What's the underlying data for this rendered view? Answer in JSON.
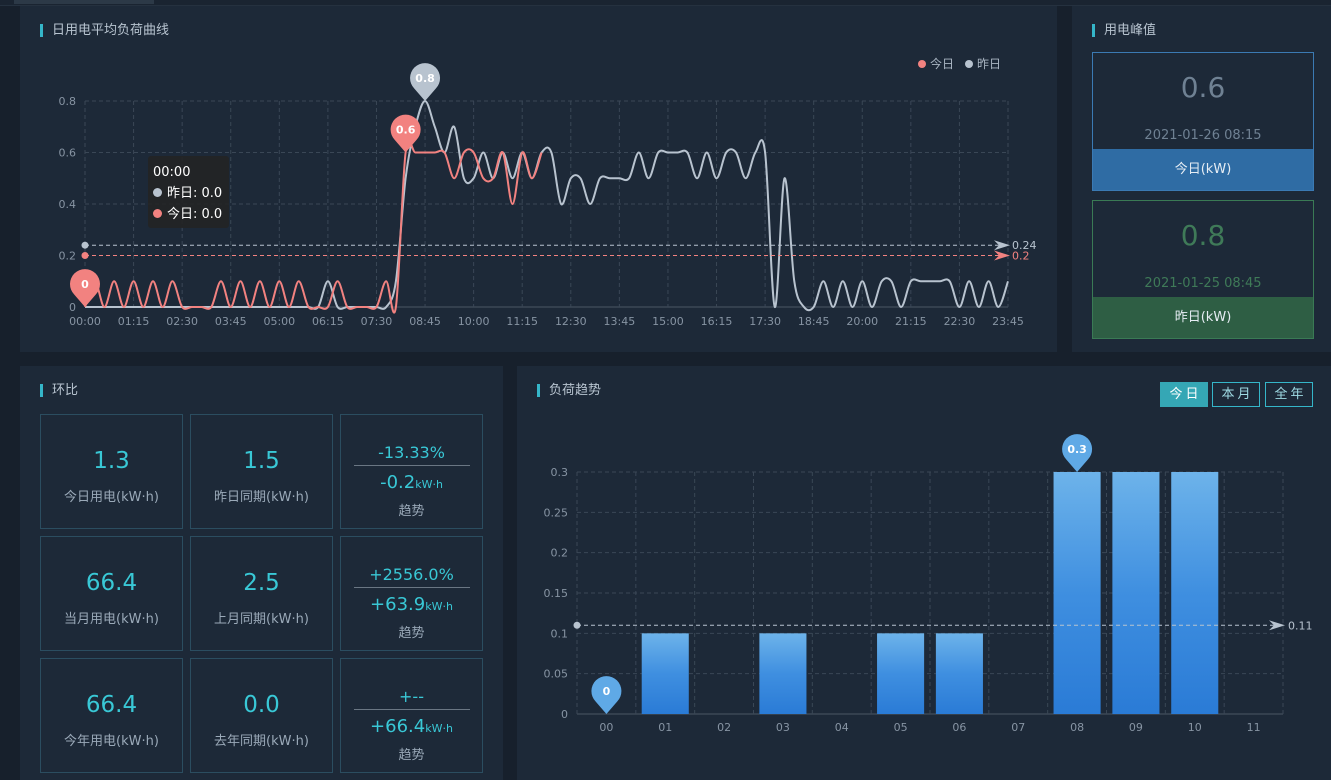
{
  "load_curve": {
    "title": "日用电平均负荷曲线",
    "legend": [
      {
        "name": "今日",
        "color": "#f28280"
      },
      {
        "name": "昨日",
        "color": "#b8c3cf"
      }
    ],
    "tooltip": {
      "time": "00:00",
      "rows": [
        {
          "name": "昨日",
          "value": "0.0"
        },
        {
          "name": "今日",
          "value": "0.0"
        }
      ]
    }
  },
  "peak": {
    "title": "用电峰值",
    "today": {
      "value": "0.6",
      "time": "2021-01-26 08:15",
      "label": "今日(kW)"
    },
    "yesterday": {
      "value": "0.8",
      "time": "2021-01-25 08:45",
      "label": "昨日(kW)"
    }
  },
  "ratio": {
    "title": "环比",
    "tiles": [
      {
        "value": "1.3",
        "label": "今日用电(kW·h)"
      },
      {
        "value": "1.5",
        "label": "昨日同期(kW·h)"
      },
      {
        "pct": "-13.33%",
        "diff": "-0.2",
        "unit": "kW·h",
        "trend": "趋势"
      },
      {
        "value": "66.4",
        "label": "当月用电(kW·h)"
      },
      {
        "value": "2.5",
        "label": "上月同期(kW·h)"
      },
      {
        "pct": "+2556.0%",
        "diff": "+63.9",
        "unit": "kW·h",
        "trend": "趋势"
      },
      {
        "value": "66.4",
        "label": "今年用电(kW·h)"
      },
      {
        "value": "0.0",
        "label": "去年同期(kW·h)"
      },
      {
        "pct": "+--",
        "diff": "+66.4",
        "unit": "kW·h",
        "trend": "趋势"
      }
    ]
  },
  "trend": {
    "title": "负荷趋势",
    "buttons": [
      {
        "label": "今日",
        "active": true
      },
      {
        "label": "本月",
        "active": false
      },
      {
        "label": "全年",
        "active": false
      }
    ]
  },
  "chart_data": [
    {
      "type": "line",
      "title": "日用电平均负荷曲线",
      "x_ticks": [
        "00:00",
        "01:15",
        "02:30",
        "03:45",
        "05:00",
        "06:15",
        "07:30",
        "08:45",
        "10:00",
        "11:15",
        "12:30",
        "13:45",
        "15:00",
        "16:15",
        "17:30",
        "18:45",
        "20:00",
        "21:15",
        "22:30",
        "23:45"
      ],
      "ylim": [
        0,
        0.8
      ],
      "y_ticks": [
        0,
        0.2,
        0.4,
        0.6,
        0.8
      ],
      "grid": true,
      "legend_position": "top-right",
      "series": [
        {
          "name": "今日",
          "color": "#f28280",
          "x": [
            "00:00",
            "00:15",
            "00:30",
            "00:45",
            "01:00",
            "01:15",
            "01:30",
            "01:45",
            "02:00",
            "02:15",
            "02:30",
            "02:45",
            "03:00",
            "03:15",
            "03:30",
            "03:45",
            "04:00",
            "04:15",
            "04:30",
            "04:45",
            "05:00",
            "05:15",
            "05:30",
            "05:45",
            "06:00",
            "06:15",
            "06:30",
            "06:45",
            "07:00",
            "07:15",
            "07:30",
            "07:45",
            "08:00",
            "08:15",
            "08:30",
            "08:45",
            "09:00",
            "09:15",
            "09:30",
            "09:45",
            "10:00",
            "10:15",
            "10:30",
            "10:45",
            "11:00",
            "11:15",
            "11:30",
            "11:45"
          ],
          "values": [
            0,
            0.1,
            0,
            0.1,
            0,
            0.1,
            0,
            0.1,
            0,
            0.1,
            0,
            0,
            0,
            0,
            0.1,
            0,
            0.1,
            0,
            0.1,
            0,
            0.1,
            0,
            0.1,
            0,
            0,
            0,
            0.1,
            0,
            0,
            0,
            0,
            0.1,
            0,
            0.6,
            0.6,
            0.6,
            0.6,
            0.6,
            0.5,
            0.6,
            0.6,
            0.5,
            0.5,
            0.6,
            0.4,
            0.6,
            0.5,
            0.6
          ]
        },
        {
          "name": "昨日",
          "color": "#b8c3cf",
          "x": [
            "00:00",
            "00:15",
            "00:30",
            "00:45",
            "01:00",
            "01:15",
            "01:30",
            "01:45",
            "02:00",
            "02:15",
            "02:30",
            "02:45",
            "03:00",
            "03:15",
            "03:30",
            "03:45",
            "04:00",
            "04:15",
            "04:30",
            "04:45",
            "05:00",
            "05:15",
            "05:30",
            "05:45",
            "06:00",
            "06:15",
            "06:30",
            "06:45",
            "07:00",
            "07:15",
            "07:30",
            "07:45",
            "08:00",
            "08:15",
            "08:30",
            "08:45",
            "09:00",
            "09:15",
            "09:30",
            "09:45",
            "10:00",
            "10:15",
            "10:30",
            "10:45",
            "11:00",
            "11:15",
            "11:30",
            "11:45",
            "12:00",
            "12:15",
            "12:30",
            "12:45",
            "13:00",
            "13:15",
            "13:30",
            "13:45",
            "14:00",
            "14:15",
            "14:30",
            "14:45",
            "15:00",
            "15:15",
            "15:30",
            "15:45",
            "16:00",
            "16:15",
            "16:30",
            "16:45",
            "17:00",
            "17:15",
            "17:30",
            "17:45",
            "18:00",
            "18:15",
            "18:30",
            "18:45",
            "19:00",
            "19:15",
            "19:30",
            "19:45",
            "20:00",
            "20:15",
            "20:30",
            "20:45",
            "21:00",
            "21:15",
            "21:30",
            "21:45",
            "22:00",
            "22:15",
            "22:30",
            "22:45",
            "23:00",
            "23:15",
            "23:30",
            "23:45"
          ],
          "values": [
            0,
            0,
            0,
            0,
            0,
            0,
            0,
            0,
            0,
            0,
            0,
            0,
            0,
            0,
            0,
            0,
            0,
            0,
            0,
            0,
            0,
            0,
            0,
            0,
            0,
            0.1,
            0,
            0,
            0,
            0,
            0,
            0,
            0.1,
            0.5,
            0.7,
            0.8,
            0.7,
            0.6,
            0.7,
            0.5,
            0.5,
            0.6,
            0.5,
            0.6,
            0.5,
            0.6,
            0.5,
            0.6,
            0.6,
            0.4,
            0.5,
            0.5,
            0.4,
            0.5,
            0.5,
            0.5,
            0.5,
            0.6,
            0.5,
            0.6,
            0.6,
            0.6,
            0.6,
            0.5,
            0.6,
            0.5,
            0.6,
            0.6,
            0.5,
            0.6,
            0.6,
            0,
            0.5,
            0.1,
            0,
            0,
            0.1,
            0,
            0.1,
            0,
            0.1,
            0,
            0.1,
            0.1,
            0,
            0.1,
            0.1,
            0.1,
            0.1,
            0.1,
            0,
            0.1,
            0,
            0.1,
            0,
            0.1
          ]
        }
      ],
      "markers": [
        {
          "series": "今日",
          "label": "0",
          "x": "00:00",
          "y": 0,
          "kind": "min"
        },
        {
          "series": "今日",
          "label": "0.6",
          "x": "08:15",
          "y": 0.6,
          "kind": "max"
        },
        {
          "series": "昨日",
          "label": "0.8",
          "x": "08:45",
          "y": 0.8,
          "kind": "max"
        }
      ],
      "average_lines": [
        {
          "series": "昨日",
          "label": "0.24",
          "y": 0.24
        },
        {
          "series": "今日",
          "label": "0.2",
          "y": 0.2
        }
      ]
    },
    {
      "type": "bar",
      "title": "负荷趋势",
      "categories": [
        "00",
        "01",
        "02",
        "03",
        "04",
        "05",
        "06",
        "07",
        "08",
        "09",
        "10",
        "11"
      ],
      "values": [
        0,
        0.1,
        0,
        0.1,
        0,
        0.1,
        0.1,
        0,
        0.3,
        0.3,
        0.3,
        0
      ],
      "ylim": [
        0,
        0.3
      ],
      "y_ticks": [
        "0",
        "0.05",
        "0.1",
        "0.15",
        "0.2",
        "0.25",
        "0.3"
      ],
      "grid": true,
      "markers": [
        {
          "label": "0.3",
          "category": "08",
          "value": 0.3,
          "kind": "max"
        },
        {
          "label": "0",
          "category": "00",
          "value": 0,
          "kind": "min"
        }
      ],
      "average_line": {
        "label": "0.11",
        "value": 0.11
      }
    }
  ]
}
